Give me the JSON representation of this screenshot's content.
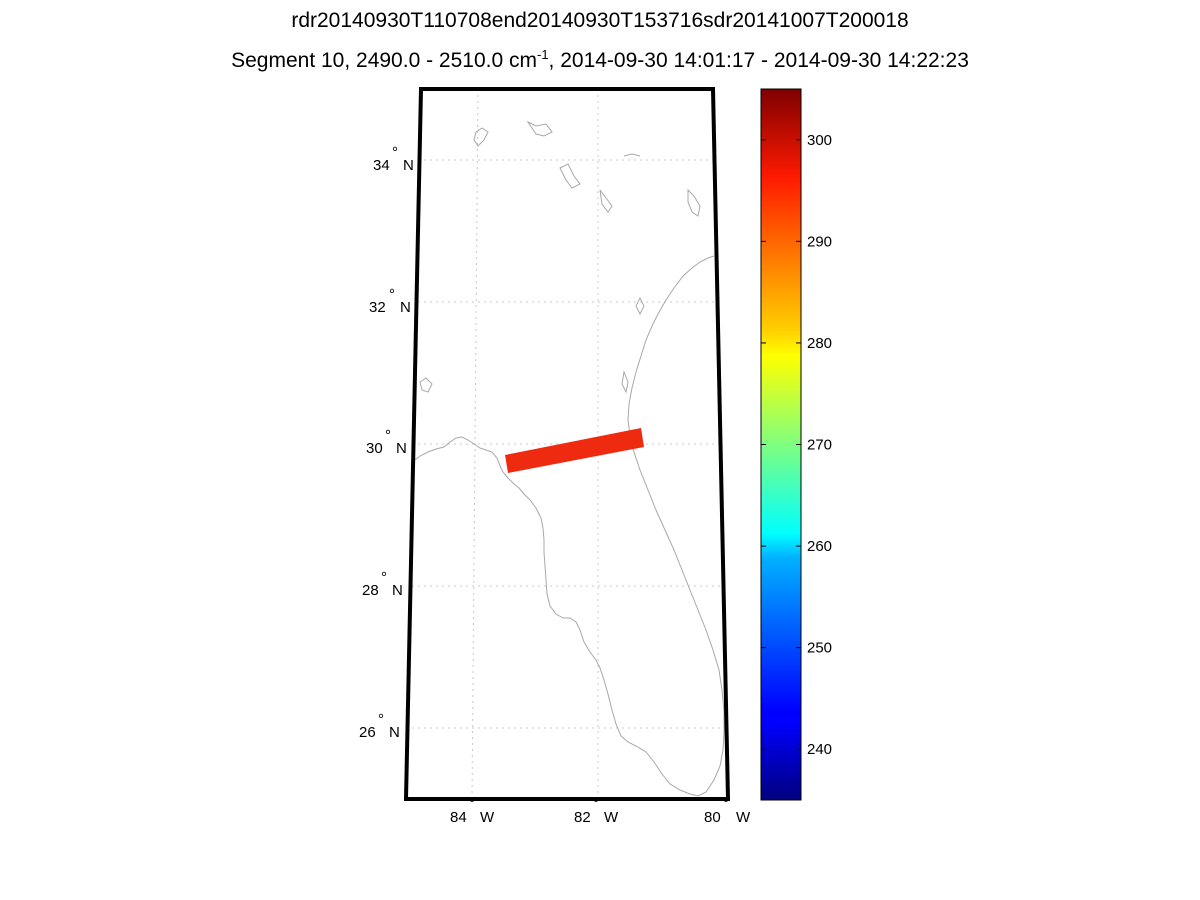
{
  "title": {
    "line1": "rdr20140930T110708end20140930T153716sdr20141007T200018",
    "line2_prefix": "Segment 10, 2490.0 - 2510.0 cm",
    "line2_sup": "-1",
    "line2_suffix": ", 2014-09-30 14:01:17 - 2014-09-30 14:22:23"
  },
  "map": {
    "lat_labels": [
      {
        "value": 34,
        "text_deg": "34",
        "hemi": "N"
      },
      {
        "value": 32,
        "text_deg": "32",
        "hemi": "N"
      },
      {
        "value": 30,
        "text_deg": "30",
        "hemi": "N"
      },
      {
        "value": 28,
        "text_deg": "28",
        "hemi": "N"
      },
      {
        "value": 26,
        "text_deg": "26",
        "hemi": "N"
      }
    ],
    "lon_labels": [
      {
        "value": -84,
        "text_deg": "84",
        "hemi": "W"
      },
      {
        "value": -82,
        "text_deg": "82",
        "hemi": "W"
      },
      {
        "value": -80,
        "text_deg": "80",
        "hemi": "W"
      }
    ],
    "degree_symbol": "°",
    "swath_color": "#ee2a10",
    "coast_color": "#a8a8a8",
    "grid_color": "#c8c8c8"
  },
  "colorbar": {
    "min": 235,
    "max": 305,
    "ticks": [
      240,
      250,
      260,
      270,
      280,
      290,
      300
    ],
    "colormap": "jet"
  }
}
